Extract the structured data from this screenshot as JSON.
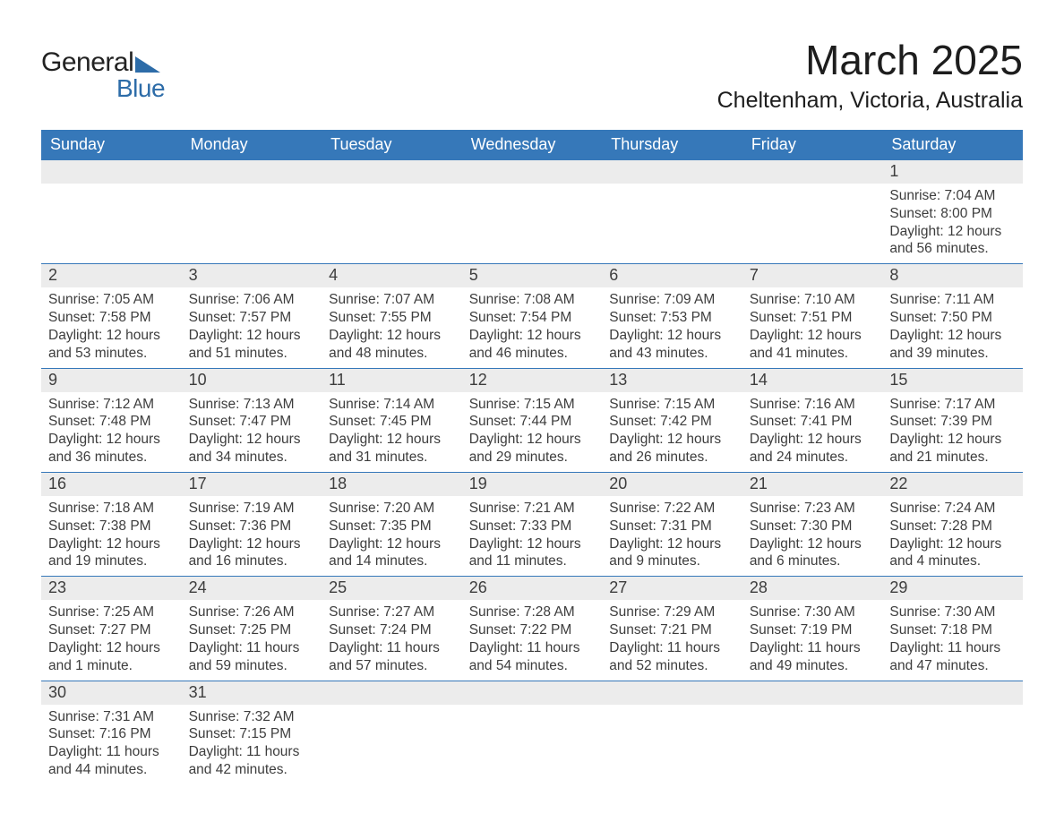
{
  "logo": {
    "word1": "General",
    "word2": "Blue"
  },
  "title": {
    "month": "March 2025",
    "location": "Cheltenham, Victoria, Australia"
  },
  "colors": {
    "header_bg": "#3678b9",
    "header_text": "#ffffff",
    "daynum_bg": "#ececec",
    "row_border": "#3678b9",
    "text": "#3d3d3d",
    "page_bg": "#ffffff",
    "logo_blue": "#2d6ca8"
  },
  "fonts": {
    "title_size_pt": 34,
    "location_size_pt": 19,
    "header_size_pt": 14,
    "body_size_pt": 12
  },
  "weekdays": [
    "Sunday",
    "Monday",
    "Tuesday",
    "Wednesday",
    "Thursday",
    "Friday",
    "Saturday"
  ],
  "weeks": [
    [
      {
        "blank": true
      },
      {
        "blank": true
      },
      {
        "blank": true
      },
      {
        "blank": true
      },
      {
        "blank": true
      },
      {
        "blank": true
      },
      {
        "day": "1",
        "sunrise": "Sunrise: 7:04 AM",
        "sunset": "Sunset: 8:00 PM",
        "daylight": "Daylight: 12 hours and 56 minutes."
      }
    ],
    [
      {
        "day": "2",
        "sunrise": "Sunrise: 7:05 AM",
        "sunset": "Sunset: 7:58 PM",
        "daylight": "Daylight: 12 hours and 53 minutes."
      },
      {
        "day": "3",
        "sunrise": "Sunrise: 7:06 AM",
        "sunset": "Sunset: 7:57 PM",
        "daylight": "Daylight: 12 hours and 51 minutes."
      },
      {
        "day": "4",
        "sunrise": "Sunrise: 7:07 AM",
        "sunset": "Sunset: 7:55 PM",
        "daylight": "Daylight: 12 hours and 48 minutes."
      },
      {
        "day": "5",
        "sunrise": "Sunrise: 7:08 AM",
        "sunset": "Sunset: 7:54 PM",
        "daylight": "Daylight: 12 hours and 46 minutes."
      },
      {
        "day": "6",
        "sunrise": "Sunrise: 7:09 AM",
        "sunset": "Sunset: 7:53 PM",
        "daylight": "Daylight: 12 hours and 43 minutes."
      },
      {
        "day": "7",
        "sunrise": "Sunrise: 7:10 AM",
        "sunset": "Sunset: 7:51 PM",
        "daylight": "Daylight: 12 hours and 41 minutes."
      },
      {
        "day": "8",
        "sunrise": "Sunrise: 7:11 AM",
        "sunset": "Sunset: 7:50 PM",
        "daylight": "Daylight: 12 hours and 39 minutes."
      }
    ],
    [
      {
        "day": "9",
        "sunrise": "Sunrise: 7:12 AM",
        "sunset": "Sunset: 7:48 PM",
        "daylight": "Daylight: 12 hours and 36 minutes."
      },
      {
        "day": "10",
        "sunrise": "Sunrise: 7:13 AM",
        "sunset": "Sunset: 7:47 PM",
        "daylight": "Daylight: 12 hours and 34 minutes."
      },
      {
        "day": "11",
        "sunrise": "Sunrise: 7:14 AM",
        "sunset": "Sunset: 7:45 PM",
        "daylight": "Daylight: 12 hours and 31 minutes."
      },
      {
        "day": "12",
        "sunrise": "Sunrise: 7:15 AM",
        "sunset": "Sunset: 7:44 PM",
        "daylight": "Daylight: 12 hours and 29 minutes."
      },
      {
        "day": "13",
        "sunrise": "Sunrise: 7:15 AM",
        "sunset": "Sunset: 7:42 PM",
        "daylight": "Daylight: 12 hours and 26 minutes."
      },
      {
        "day": "14",
        "sunrise": "Sunrise: 7:16 AM",
        "sunset": "Sunset: 7:41 PM",
        "daylight": "Daylight: 12 hours and 24 minutes."
      },
      {
        "day": "15",
        "sunrise": "Sunrise: 7:17 AM",
        "sunset": "Sunset: 7:39 PM",
        "daylight": "Daylight: 12 hours and 21 minutes."
      }
    ],
    [
      {
        "day": "16",
        "sunrise": "Sunrise: 7:18 AM",
        "sunset": "Sunset: 7:38 PM",
        "daylight": "Daylight: 12 hours and 19 minutes."
      },
      {
        "day": "17",
        "sunrise": "Sunrise: 7:19 AM",
        "sunset": "Sunset: 7:36 PM",
        "daylight": "Daylight: 12 hours and 16 minutes."
      },
      {
        "day": "18",
        "sunrise": "Sunrise: 7:20 AM",
        "sunset": "Sunset: 7:35 PM",
        "daylight": "Daylight: 12 hours and 14 minutes."
      },
      {
        "day": "19",
        "sunrise": "Sunrise: 7:21 AM",
        "sunset": "Sunset: 7:33 PM",
        "daylight": "Daylight: 12 hours and 11 minutes."
      },
      {
        "day": "20",
        "sunrise": "Sunrise: 7:22 AM",
        "sunset": "Sunset: 7:31 PM",
        "daylight": "Daylight: 12 hours and 9 minutes."
      },
      {
        "day": "21",
        "sunrise": "Sunrise: 7:23 AM",
        "sunset": "Sunset: 7:30 PM",
        "daylight": "Daylight: 12 hours and 6 minutes."
      },
      {
        "day": "22",
        "sunrise": "Sunrise: 7:24 AM",
        "sunset": "Sunset: 7:28 PM",
        "daylight": "Daylight: 12 hours and 4 minutes."
      }
    ],
    [
      {
        "day": "23",
        "sunrise": "Sunrise: 7:25 AM",
        "sunset": "Sunset: 7:27 PM",
        "daylight": "Daylight: 12 hours and 1 minute."
      },
      {
        "day": "24",
        "sunrise": "Sunrise: 7:26 AM",
        "sunset": "Sunset: 7:25 PM",
        "daylight": "Daylight: 11 hours and 59 minutes."
      },
      {
        "day": "25",
        "sunrise": "Sunrise: 7:27 AM",
        "sunset": "Sunset: 7:24 PM",
        "daylight": "Daylight: 11 hours and 57 minutes."
      },
      {
        "day": "26",
        "sunrise": "Sunrise: 7:28 AM",
        "sunset": "Sunset: 7:22 PM",
        "daylight": "Daylight: 11 hours and 54 minutes."
      },
      {
        "day": "27",
        "sunrise": "Sunrise: 7:29 AM",
        "sunset": "Sunset: 7:21 PM",
        "daylight": "Daylight: 11 hours and 52 minutes."
      },
      {
        "day": "28",
        "sunrise": "Sunrise: 7:30 AM",
        "sunset": "Sunset: 7:19 PM",
        "daylight": "Daylight: 11 hours and 49 minutes."
      },
      {
        "day": "29",
        "sunrise": "Sunrise: 7:30 AM",
        "sunset": "Sunset: 7:18 PM",
        "daylight": "Daylight: 11 hours and 47 minutes."
      }
    ],
    [
      {
        "day": "30",
        "sunrise": "Sunrise: 7:31 AM",
        "sunset": "Sunset: 7:16 PM",
        "daylight": "Daylight: 11 hours and 44 minutes."
      },
      {
        "day": "31",
        "sunrise": "Sunrise: 7:32 AM",
        "sunset": "Sunset: 7:15 PM",
        "daylight": "Daylight: 11 hours and 42 minutes."
      },
      {
        "blank": true
      },
      {
        "blank": true
      },
      {
        "blank": true
      },
      {
        "blank": true
      },
      {
        "blank": true
      }
    ]
  ]
}
